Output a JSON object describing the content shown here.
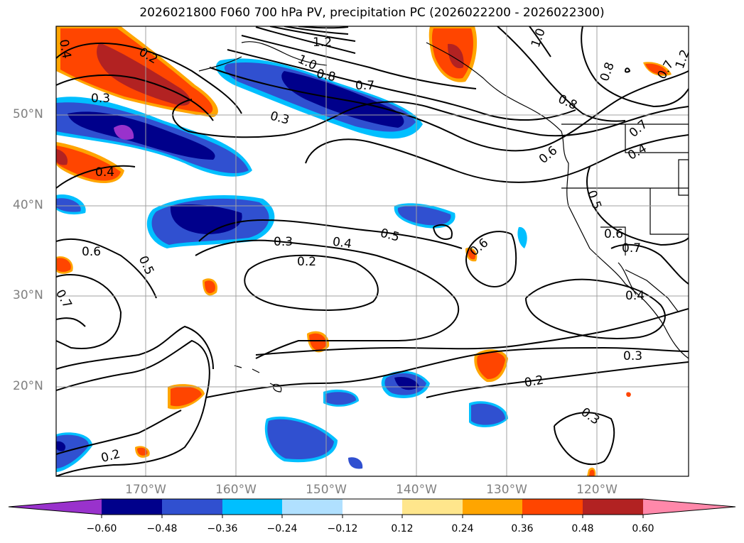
{
  "title": "2026021800 F060 700 hPa PV, precipitation PC (2026022200 - 2026022300)",
  "colors": {
    "grid": "#a0a0a0",
    "contour": "#000000",
    "coast": "#000000",
    "tick_label": "#808080"
  },
  "map": {
    "lat_ticks": [
      {
        "label": "50°N",
        "lat": 50
      },
      {
        "label": "40°N",
        "lat": 40
      },
      {
        "label": "30°N",
        "lat": 30
      },
      {
        "label": "20°N",
        "lat": 20
      }
    ],
    "lon_ticks": [
      {
        "label": "170°W",
        "lon": -170
      },
      {
        "label": "160°W",
        "lon": -160
      },
      {
        "label": "150°W",
        "lon": -150
      },
      {
        "label": "140°W",
        "lon": -140
      },
      {
        "label": "130°W",
        "lon": -130
      },
      {
        "label": "120°W",
        "lon": -120
      }
    ],
    "contour_labels": [
      "0.2",
      "0.3",
      "0.4",
      "0.5",
      "0.6",
      "0.7",
      "0.8",
      "1.0",
      "1.2"
    ]
  },
  "colorbar": {
    "ticks": [
      "−0.60",
      "−0.48",
      "−0.36",
      "−0.24",
      "−0.12",
      "0.12",
      "0.24",
      "0.36",
      "0.48",
      "0.60"
    ],
    "colors": [
      "#9932cc",
      "#00008b",
      "#3050d0",
      "#00bfff",
      "#b0e0ff",
      "#ffffff",
      "#ffe68c",
      "#ffa500",
      "#ff4500",
      "#b22222",
      "#ff88aa"
    ]
  }
}
